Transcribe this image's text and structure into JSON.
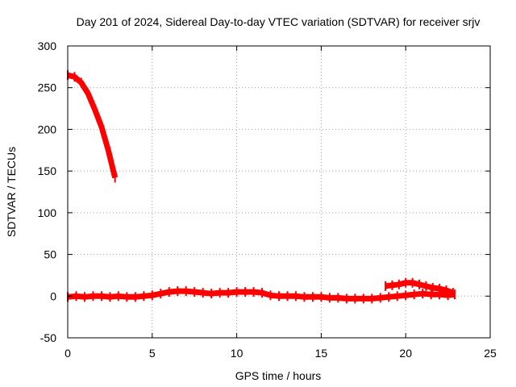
{
  "chart_data": {
    "type": "scatter",
    "title": "Day 201 of 2024, Sidereal Day-to-day VTEC variation (SDTVAR) for receiver srjv",
    "xlabel": "GPS time / hours",
    "ylabel": "SDTVAR / TECUs",
    "xlim": [
      0,
      25
    ],
    "ylim": [
      -50,
      300
    ],
    "xticks": [
      0,
      5,
      10,
      15,
      20,
      25
    ],
    "yticks": [
      -50,
      0,
      50,
      100,
      150,
      200,
      250,
      300
    ],
    "grid": true,
    "legend": "none",
    "series": [
      {
        "color": "#ff0000",
        "segments": [
          [
            [
              0.0,
              265
            ],
            [
              0.4,
              263
            ],
            [
              0.8,
              256
            ],
            [
              1.2,
              243
            ],
            [
              1.6,
              224
            ],
            [
              2.0,
              203
            ],
            [
              2.4,
              175
            ],
            [
              2.7,
              150
            ],
            [
              2.8,
              142
            ]
          ],
          [
            [
              0.0,
              -1
            ],
            [
              0.5,
              0
            ],
            [
              1.0,
              -1
            ],
            [
              1.5,
              0
            ],
            [
              2.0,
              0
            ],
            [
              2.5,
              -1
            ],
            [
              3.0,
              0
            ],
            [
              3.5,
              -1
            ],
            [
              4.0,
              -1
            ],
            [
              4.5,
              0
            ],
            [
              5.0,
              1
            ],
            [
              5.5,
              3
            ],
            [
              6.0,
              5
            ],
            [
              6.5,
              6
            ],
            [
              7.0,
              6
            ],
            [
              7.5,
              5
            ],
            [
              8.0,
              4
            ],
            [
              8.5,
              3
            ],
            [
              9.0,
              4
            ],
            [
              9.5,
              4
            ],
            [
              10.0,
              5
            ],
            [
              10.5,
              5
            ],
            [
              11.0,
              5
            ],
            [
              11.5,
              4
            ],
            [
              12.0,
              1
            ],
            [
              12.5,
              0
            ],
            [
              13.0,
              0
            ],
            [
              13.5,
              0
            ],
            [
              14.0,
              -1
            ],
            [
              14.5,
              -1
            ],
            [
              15.0,
              -1
            ],
            [
              15.5,
              -2
            ],
            [
              16.0,
              -2
            ],
            [
              16.5,
              -3
            ],
            [
              17.0,
              -3
            ],
            [
              17.5,
              -3
            ],
            [
              18.0,
              -3
            ],
            [
              18.5,
              -2
            ],
            [
              19.0,
              -1
            ],
            [
              19.5,
              0
            ],
            [
              20.0,
              1
            ],
            [
              20.5,
              2
            ],
            [
              21.0,
              3
            ],
            [
              21.5,
              2
            ],
            [
              22.0,
              2
            ],
            [
              22.5,
              1
            ],
            [
              22.9,
              2
            ]
          ],
          [
            [
              18.8,
              12
            ],
            [
              19.2,
              13
            ],
            [
              19.6,
              14
            ],
            [
              20.0,
              16
            ],
            [
              20.4,
              16
            ],
            [
              20.8,
              14
            ],
            [
              21.2,
              12
            ],
            [
              21.6,
              10
            ],
            [
              22.0,
              9
            ],
            [
              22.4,
              7
            ],
            [
              22.8,
              4
            ]
          ]
        ]
      }
    ]
  }
}
